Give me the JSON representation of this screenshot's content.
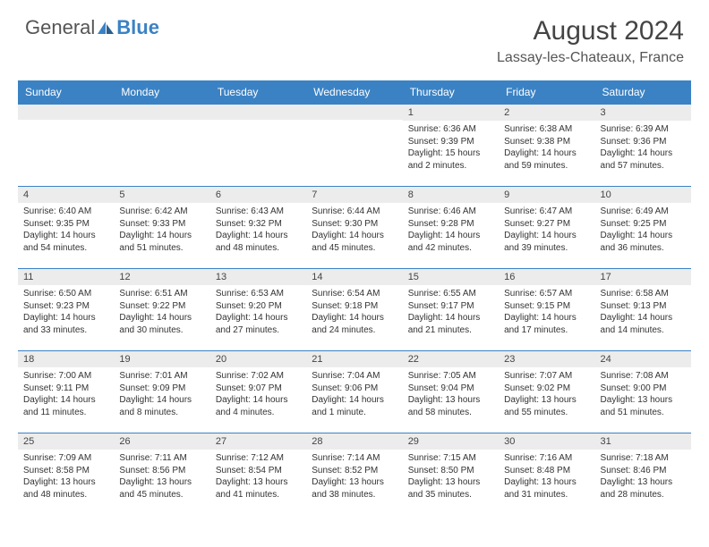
{
  "brand": {
    "general": "General",
    "blue": "Blue"
  },
  "title": "August 2024",
  "location": "Lassay-les-Chateaux, France",
  "colors": {
    "header_bg": "#3b82c4",
    "header_text": "#ffffff",
    "daynum_bg": "#ececec",
    "border": "#3b82c4",
    "body_text": "#333333"
  },
  "weekdays": [
    "Sunday",
    "Monday",
    "Tuesday",
    "Wednesday",
    "Thursday",
    "Friday",
    "Saturday"
  ],
  "weeks": [
    [
      {
        "n": "",
        "sr": "",
        "ss": "",
        "dl": ""
      },
      {
        "n": "",
        "sr": "",
        "ss": "",
        "dl": ""
      },
      {
        "n": "",
        "sr": "",
        "ss": "",
        "dl": ""
      },
      {
        "n": "",
        "sr": "",
        "ss": "",
        "dl": ""
      },
      {
        "n": "1",
        "sr": "Sunrise: 6:36 AM",
        "ss": "Sunset: 9:39 PM",
        "dl": "Daylight: 15 hours and 2 minutes."
      },
      {
        "n": "2",
        "sr": "Sunrise: 6:38 AM",
        "ss": "Sunset: 9:38 PM",
        "dl": "Daylight: 14 hours and 59 minutes."
      },
      {
        "n": "3",
        "sr": "Sunrise: 6:39 AM",
        "ss": "Sunset: 9:36 PM",
        "dl": "Daylight: 14 hours and 57 minutes."
      }
    ],
    [
      {
        "n": "4",
        "sr": "Sunrise: 6:40 AM",
        "ss": "Sunset: 9:35 PM",
        "dl": "Daylight: 14 hours and 54 minutes."
      },
      {
        "n": "5",
        "sr": "Sunrise: 6:42 AM",
        "ss": "Sunset: 9:33 PM",
        "dl": "Daylight: 14 hours and 51 minutes."
      },
      {
        "n": "6",
        "sr": "Sunrise: 6:43 AM",
        "ss": "Sunset: 9:32 PM",
        "dl": "Daylight: 14 hours and 48 minutes."
      },
      {
        "n": "7",
        "sr": "Sunrise: 6:44 AM",
        "ss": "Sunset: 9:30 PM",
        "dl": "Daylight: 14 hours and 45 minutes."
      },
      {
        "n": "8",
        "sr": "Sunrise: 6:46 AM",
        "ss": "Sunset: 9:28 PM",
        "dl": "Daylight: 14 hours and 42 minutes."
      },
      {
        "n": "9",
        "sr": "Sunrise: 6:47 AM",
        "ss": "Sunset: 9:27 PM",
        "dl": "Daylight: 14 hours and 39 minutes."
      },
      {
        "n": "10",
        "sr": "Sunrise: 6:49 AM",
        "ss": "Sunset: 9:25 PM",
        "dl": "Daylight: 14 hours and 36 minutes."
      }
    ],
    [
      {
        "n": "11",
        "sr": "Sunrise: 6:50 AM",
        "ss": "Sunset: 9:23 PM",
        "dl": "Daylight: 14 hours and 33 minutes."
      },
      {
        "n": "12",
        "sr": "Sunrise: 6:51 AM",
        "ss": "Sunset: 9:22 PM",
        "dl": "Daylight: 14 hours and 30 minutes."
      },
      {
        "n": "13",
        "sr": "Sunrise: 6:53 AM",
        "ss": "Sunset: 9:20 PM",
        "dl": "Daylight: 14 hours and 27 minutes."
      },
      {
        "n": "14",
        "sr": "Sunrise: 6:54 AM",
        "ss": "Sunset: 9:18 PM",
        "dl": "Daylight: 14 hours and 24 minutes."
      },
      {
        "n": "15",
        "sr": "Sunrise: 6:55 AM",
        "ss": "Sunset: 9:17 PM",
        "dl": "Daylight: 14 hours and 21 minutes."
      },
      {
        "n": "16",
        "sr": "Sunrise: 6:57 AM",
        "ss": "Sunset: 9:15 PM",
        "dl": "Daylight: 14 hours and 17 minutes."
      },
      {
        "n": "17",
        "sr": "Sunrise: 6:58 AM",
        "ss": "Sunset: 9:13 PM",
        "dl": "Daylight: 14 hours and 14 minutes."
      }
    ],
    [
      {
        "n": "18",
        "sr": "Sunrise: 7:00 AM",
        "ss": "Sunset: 9:11 PM",
        "dl": "Daylight: 14 hours and 11 minutes."
      },
      {
        "n": "19",
        "sr": "Sunrise: 7:01 AM",
        "ss": "Sunset: 9:09 PM",
        "dl": "Daylight: 14 hours and 8 minutes."
      },
      {
        "n": "20",
        "sr": "Sunrise: 7:02 AM",
        "ss": "Sunset: 9:07 PM",
        "dl": "Daylight: 14 hours and 4 minutes."
      },
      {
        "n": "21",
        "sr": "Sunrise: 7:04 AM",
        "ss": "Sunset: 9:06 PM",
        "dl": "Daylight: 14 hours and 1 minute."
      },
      {
        "n": "22",
        "sr": "Sunrise: 7:05 AM",
        "ss": "Sunset: 9:04 PM",
        "dl": "Daylight: 13 hours and 58 minutes."
      },
      {
        "n": "23",
        "sr": "Sunrise: 7:07 AM",
        "ss": "Sunset: 9:02 PM",
        "dl": "Daylight: 13 hours and 55 minutes."
      },
      {
        "n": "24",
        "sr": "Sunrise: 7:08 AM",
        "ss": "Sunset: 9:00 PM",
        "dl": "Daylight: 13 hours and 51 minutes."
      }
    ],
    [
      {
        "n": "25",
        "sr": "Sunrise: 7:09 AM",
        "ss": "Sunset: 8:58 PM",
        "dl": "Daylight: 13 hours and 48 minutes."
      },
      {
        "n": "26",
        "sr": "Sunrise: 7:11 AM",
        "ss": "Sunset: 8:56 PM",
        "dl": "Daylight: 13 hours and 45 minutes."
      },
      {
        "n": "27",
        "sr": "Sunrise: 7:12 AM",
        "ss": "Sunset: 8:54 PM",
        "dl": "Daylight: 13 hours and 41 minutes."
      },
      {
        "n": "28",
        "sr": "Sunrise: 7:14 AM",
        "ss": "Sunset: 8:52 PM",
        "dl": "Daylight: 13 hours and 38 minutes."
      },
      {
        "n": "29",
        "sr": "Sunrise: 7:15 AM",
        "ss": "Sunset: 8:50 PM",
        "dl": "Daylight: 13 hours and 35 minutes."
      },
      {
        "n": "30",
        "sr": "Sunrise: 7:16 AM",
        "ss": "Sunset: 8:48 PM",
        "dl": "Daylight: 13 hours and 31 minutes."
      },
      {
        "n": "31",
        "sr": "Sunrise: 7:18 AM",
        "ss": "Sunset: 8:46 PM",
        "dl": "Daylight: 13 hours and 28 minutes."
      }
    ]
  ]
}
